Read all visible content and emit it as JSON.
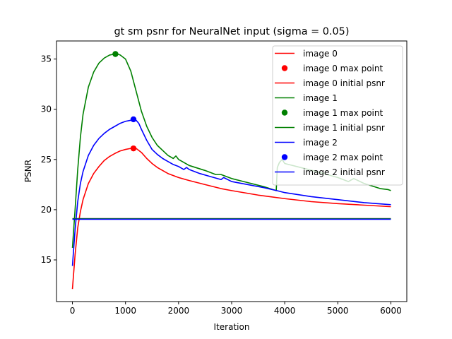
{
  "chart_data": {
    "type": "line",
    "title": "gt sm psnr for NeuralNet input (sigma = 0.05)",
    "xlabel": "Iteration",
    "ylabel": "PSNR",
    "xlim": [
      -300,
      6300
    ],
    "ylim": [
      10.85,
      36.8
    ],
    "xticks": [
      0,
      1000,
      2000,
      3000,
      4000,
      5000,
      6000
    ],
    "yticks": [
      15,
      20,
      25,
      30,
      35
    ],
    "grid": false,
    "legend_position": "top-right",
    "legend": [
      {
        "label": "image 0",
        "kind": "line",
        "color": "#ff0000"
      },
      {
        "label": "image 0 max point",
        "kind": "marker",
        "color": "#ff0000"
      },
      {
        "label": "image 0 initial psnr",
        "kind": "line",
        "color": "#ff0000"
      },
      {
        "label": "image 1",
        "kind": "line",
        "color": "#008000"
      },
      {
        "label": "image 1 max point",
        "kind": "marker",
        "color": "#008000"
      },
      {
        "label": "image 1 initial psnr",
        "kind": "line",
        "color": "#008000"
      },
      {
        "label": "image 2",
        "kind": "line",
        "color": "#0000ff"
      },
      {
        "label": "image 2 max point",
        "kind": "marker",
        "color": "#0000ff"
      },
      {
        "label": "image 2 initial psnr",
        "kind": "line",
        "color": "#0000ff"
      }
    ],
    "series": [
      {
        "name": "image 0",
        "color": "#ff0000",
        "x": [
          0,
          50,
          100,
          150,
          200,
          300,
          400,
          500,
          600,
          700,
          800,
          900,
          1000,
          1100,
          1150,
          1200,
          1300,
          1400,
          1500,
          1600,
          1800,
          2000,
          2200,
          2500,
          2800,
          3000,
          3500,
          4000,
          4500,
          5000,
          5500,
          6000
        ],
        "y": [
          12.1,
          15.5,
          18.2,
          19.8,
          21.0,
          22.6,
          23.6,
          24.3,
          24.9,
          25.3,
          25.6,
          25.85,
          26.0,
          26.1,
          26.15,
          26.1,
          25.7,
          25.1,
          24.6,
          24.2,
          23.6,
          23.2,
          22.9,
          22.5,
          22.1,
          21.9,
          21.45,
          21.1,
          20.8,
          20.6,
          20.45,
          20.3
        ]
      },
      {
        "name": "image 1",
        "color": "#008000",
        "x": [
          0,
          50,
          100,
          150,
          200,
          300,
          400,
          500,
          600,
          700,
          800,
          850,
          900,
          1000,
          1100,
          1200,
          1300,
          1400,
          1500,
          1600,
          1800,
          1900,
          1950,
          2000,
          2200,
          2500,
          2700,
          2800,
          3000,
          3300,
          3600,
          3840,
          3860,
          3900,
          3950,
          4000,
          4300,
          4600,
          4800,
          5000,
          5200,
          5300,
          5500,
          5800,
          5950,
          6000
        ],
        "y": [
          16.2,
          20.0,
          24.0,
          27.2,
          29.5,
          32.2,
          33.7,
          34.6,
          35.1,
          35.4,
          35.5,
          35.5,
          35.4,
          35.0,
          33.8,
          31.8,
          29.8,
          28.3,
          27.2,
          26.4,
          25.4,
          25.1,
          25.35,
          25.0,
          24.4,
          23.9,
          23.5,
          23.5,
          23.1,
          22.7,
          22.3,
          21.9,
          24.2,
          24.7,
          25.0,
          24.6,
          24.2,
          23.8,
          23.5,
          23.2,
          22.8,
          23.1,
          22.6,
          22.1,
          22.0,
          21.9
        ]
      },
      {
        "name": "image 2",
        "color": "#0000ff",
        "x": [
          0,
          50,
          100,
          150,
          200,
          300,
          400,
          500,
          600,
          700,
          800,
          900,
          1000,
          1100,
          1150,
          1200,
          1250,
          1300,
          1400,
          1500,
          1600,
          1700,
          1800,
          1900,
          2000,
          2100,
          2150,
          2200,
          2400,
          2600,
          2800,
          2850,
          3000,
          3300,
          3600,
          3850,
          4000,
          4500,
          5000,
          5500,
          6000
        ],
        "y": [
          14.4,
          18.0,
          20.8,
          22.6,
          23.8,
          25.4,
          26.4,
          27.1,
          27.6,
          28.0,
          28.3,
          28.6,
          28.8,
          28.9,
          29.0,
          28.9,
          28.6,
          28.0,
          26.9,
          26.0,
          25.5,
          25.1,
          24.8,
          24.5,
          24.3,
          24.0,
          24.2,
          24.0,
          23.6,
          23.3,
          23.0,
          23.2,
          22.8,
          22.5,
          22.2,
          21.9,
          21.7,
          21.3,
          21.0,
          20.7,
          20.5
        ]
      },
      {
        "name": "image 0 initial psnr",
        "color": "#ff0000",
        "x": [
          0,
          6000
        ],
        "y": [
          19.1,
          19.1
        ]
      },
      {
        "name": "image 1 initial psnr",
        "color": "#008000",
        "x": [
          0,
          6000
        ],
        "y": [
          19.1,
          19.1
        ]
      },
      {
        "name": "image 2 initial psnr",
        "color": "#0000ff",
        "x": [
          0,
          6000
        ],
        "y": [
          19.05,
          19.05
        ]
      }
    ],
    "max_points": [
      {
        "name": "image 0 max point",
        "color": "#ff0000",
        "x": 1150,
        "y": 26.1
      },
      {
        "name": "image 1 max point",
        "color": "#008000",
        "x": 810,
        "y": 35.5
      },
      {
        "name": "image 2 max point",
        "color": "#0000ff",
        "x": 1150,
        "y": 29.0
      }
    ]
  }
}
